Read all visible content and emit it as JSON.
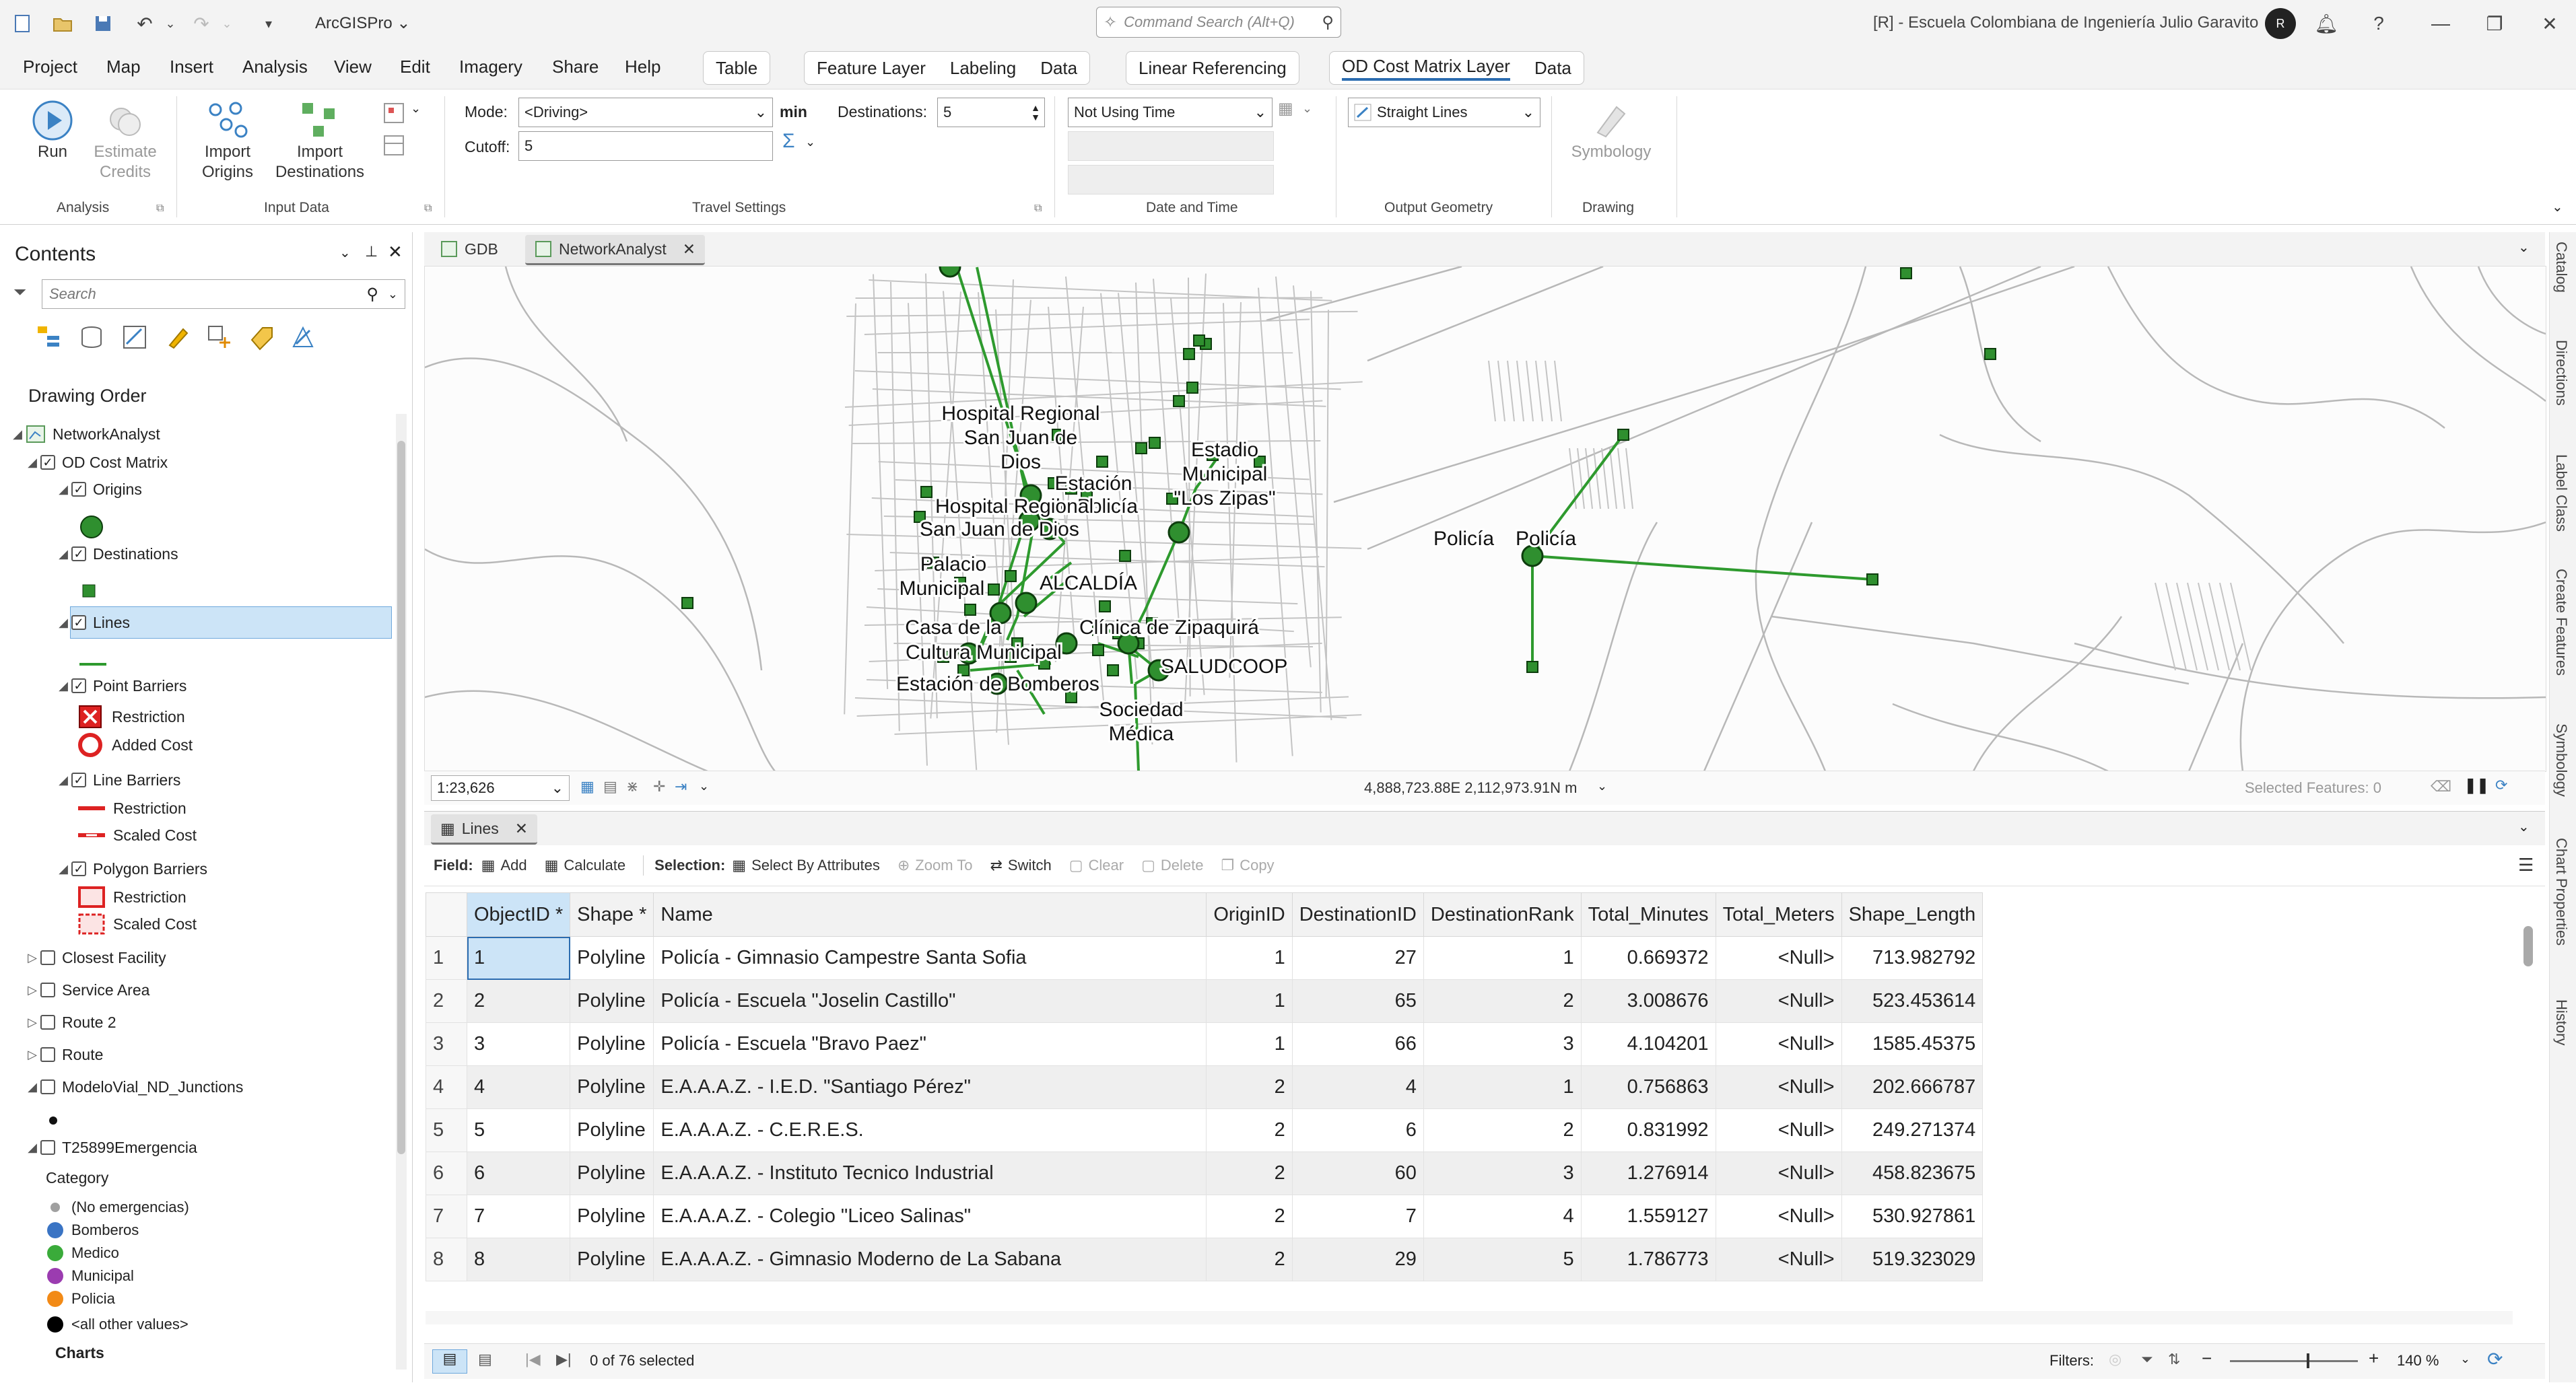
{
  "app": {
    "name": "ArcGISPro",
    "search_placeholder": "Command Search (Alt+Q)",
    "org": "[R] - Escuela Colombiana de Ingeniería Julio Garavito",
    "avatar": "R"
  },
  "menu": [
    "Project",
    "Map",
    "Insert",
    "Analysis",
    "View",
    "Edit",
    "Imagery",
    "Share",
    "Help"
  ],
  "context_tabs": {
    "table": [
      "Table"
    ],
    "feature_layer": [
      "Feature Layer",
      "Labeling",
      "Data"
    ],
    "linear_ref": [
      "Linear Referencing"
    ],
    "od_layer": [
      "OD Cost Matrix Layer",
      "Data"
    ]
  },
  "ribbon": {
    "run": "Run",
    "estimate_credits": [
      "Estimate",
      "Credits"
    ],
    "import_origins": [
      "Import",
      "Origins"
    ],
    "import_destinations": [
      "Import",
      "Destinations"
    ],
    "mode_label": "Mode:",
    "mode_value": "<Driving>",
    "min_label": "min",
    "cutoff_label": "Cutoff:",
    "cutoff_value": "5",
    "destinations_label": "Destinations:",
    "destinations_value": "5",
    "time_value": "Not Using Time",
    "geometry_value": "Straight Lines",
    "symbology": "Symbology",
    "groups": [
      "Analysis",
      "Input Data",
      "Travel Settings",
      "Date and Time",
      "Output Geometry",
      "Drawing"
    ]
  },
  "contents": {
    "title": "Contents",
    "search_placeholder": "Search",
    "drawing_order": "Drawing Order",
    "items": [
      {
        "label": "NetworkAnalyst"
      },
      {
        "label": "OD Cost Matrix"
      },
      {
        "label": "Origins"
      },
      {
        "label": "Destinations"
      },
      {
        "label": "Lines"
      },
      {
        "label": "Point Barriers"
      },
      {
        "label": "Restriction"
      },
      {
        "label": "Added Cost"
      },
      {
        "label": "Line Barriers"
      },
      {
        "label": "Restriction"
      },
      {
        "label": "Scaled Cost"
      },
      {
        "label": "Polygon Barriers"
      },
      {
        "label": "Restriction"
      },
      {
        "label": "Scaled Cost"
      },
      {
        "label": "Closest Facility"
      },
      {
        "label": "Service Area"
      },
      {
        "label": "Route 2"
      },
      {
        "label": "Route"
      },
      {
        "label": "ModeloVial_ND_Junctions"
      },
      {
        "label": "T25899Emergencia"
      }
    ],
    "category_label": "Category",
    "categories": [
      {
        "label": "(No emergencias)",
        "color": "#a0a0a0"
      },
      {
        "label": "Bomberos",
        "color": "#3a74c4"
      },
      {
        "label": "Medico",
        "color": "#3aab3a"
      },
      {
        "label": "Municipal",
        "color": "#9b3cb0"
      },
      {
        "label": "Policia",
        "color": "#f28a16"
      },
      {
        "label": "<all other values>",
        "color": "#000000"
      }
    ],
    "charts_label": "Charts"
  },
  "tabs": {
    "gdb": "GDB",
    "network": "NetworkAnalyst",
    "lines": "Lines"
  },
  "map": {
    "scale": "1:23,626",
    "coords": "4,888,723.88E 2,112,973.91N m",
    "selected": "Selected Features: 0",
    "labels": [
      "Hospital Regional",
      "San Juan de",
      "Dios",
      "Estación",
      "de Policía",
      "Hospital Regional",
      "San Juan de Dios",
      "Estadio",
      "Municipal",
      "\"Los Zipas\"",
      "Palacio",
      "Municipal",
      "ALCALDÍA",
      "Casa de la",
      "Cultura Municipal",
      "Clínica de Zipaquirá",
      "SALUDCOOP",
      "Estación de Bomberos",
      "Sociedad",
      "Médica",
      "Policía",
      "Policía"
    ]
  },
  "table_toolbar": {
    "field": "Field:",
    "add": "Add",
    "calculate": "Calculate",
    "selection": "Selection:",
    "select_by_attr": "Select By Attributes",
    "zoom_to": "Zoom To",
    "switch": "Switch",
    "clear": "Clear",
    "delete": "Delete",
    "copy": "Copy"
  },
  "table": {
    "columns": [
      "ObjectID *",
      "Shape *",
      "Name",
      "OriginID",
      "DestinationID",
      "DestinationRank",
      "Total_Minutes",
      "Total_Meters",
      "Shape_Length"
    ],
    "rows": [
      [
        "1",
        "1",
        "Polyline",
        "Policía - Gimnasio Campestre Santa Sofia",
        "1",
        "27",
        "1",
        "0.669372",
        "<Null>",
        "713.982792"
      ],
      [
        "2",
        "2",
        "Polyline",
        "Policía - Escuela \"Joselin Castillo\"",
        "1",
        "65",
        "2",
        "3.008676",
        "<Null>",
        "523.453614"
      ],
      [
        "3",
        "3",
        "Polyline",
        "Policía - Escuela \"Bravo Paez\"",
        "1",
        "66",
        "3",
        "4.104201",
        "<Null>",
        "1585.45375"
      ],
      [
        "4",
        "4",
        "Polyline",
        "E.A.A.A.Z. - I.E.D. \"Santiago Pérez\"",
        "2",
        "4",
        "1",
        "0.756863",
        "<Null>",
        "202.666787"
      ],
      [
        "5",
        "5",
        "Polyline",
        "E.A.A.A.Z. - C.E.R.E.S.",
        "2",
        "6",
        "2",
        "0.831992",
        "<Null>",
        "249.271374"
      ],
      [
        "6",
        "6",
        "Polyline",
        "E.A.A.A.Z. - Instituto Tecnico Industrial",
        "2",
        "60",
        "3",
        "1.276914",
        "<Null>",
        "458.823675"
      ],
      [
        "7",
        "7",
        "Polyline",
        "E.A.A.A.Z. - Colegio \"Liceo Salinas\"",
        "2",
        "7",
        "4",
        "1.559127",
        "<Null>",
        "530.927861"
      ],
      [
        "8",
        "8",
        "Polyline",
        "E.A.A.A.Z. - Gimnasio Moderno de La Sabana",
        "2",
        "29",
        "5",
        "1.786773",
        "<Null>",
        "519.323029"
      ]
    ],
    "selected_text": "0 of 76 selected",
    "filters": "Filters:",
    "zoom": "140 %"
  },
  "dock_tabs": [
    "Catalog",
    "Directions",
    "Label Class",
    "Create Features",
    "Symbology",
    "Chart Properties",
    "History"
  ],
  "colors": {
    "accent": "#2b6cb0",
    "route_green": "#2e9a2e",
    "node_green": "#2f8f2f",
    "selection": "#cce4f7"
  }
}
